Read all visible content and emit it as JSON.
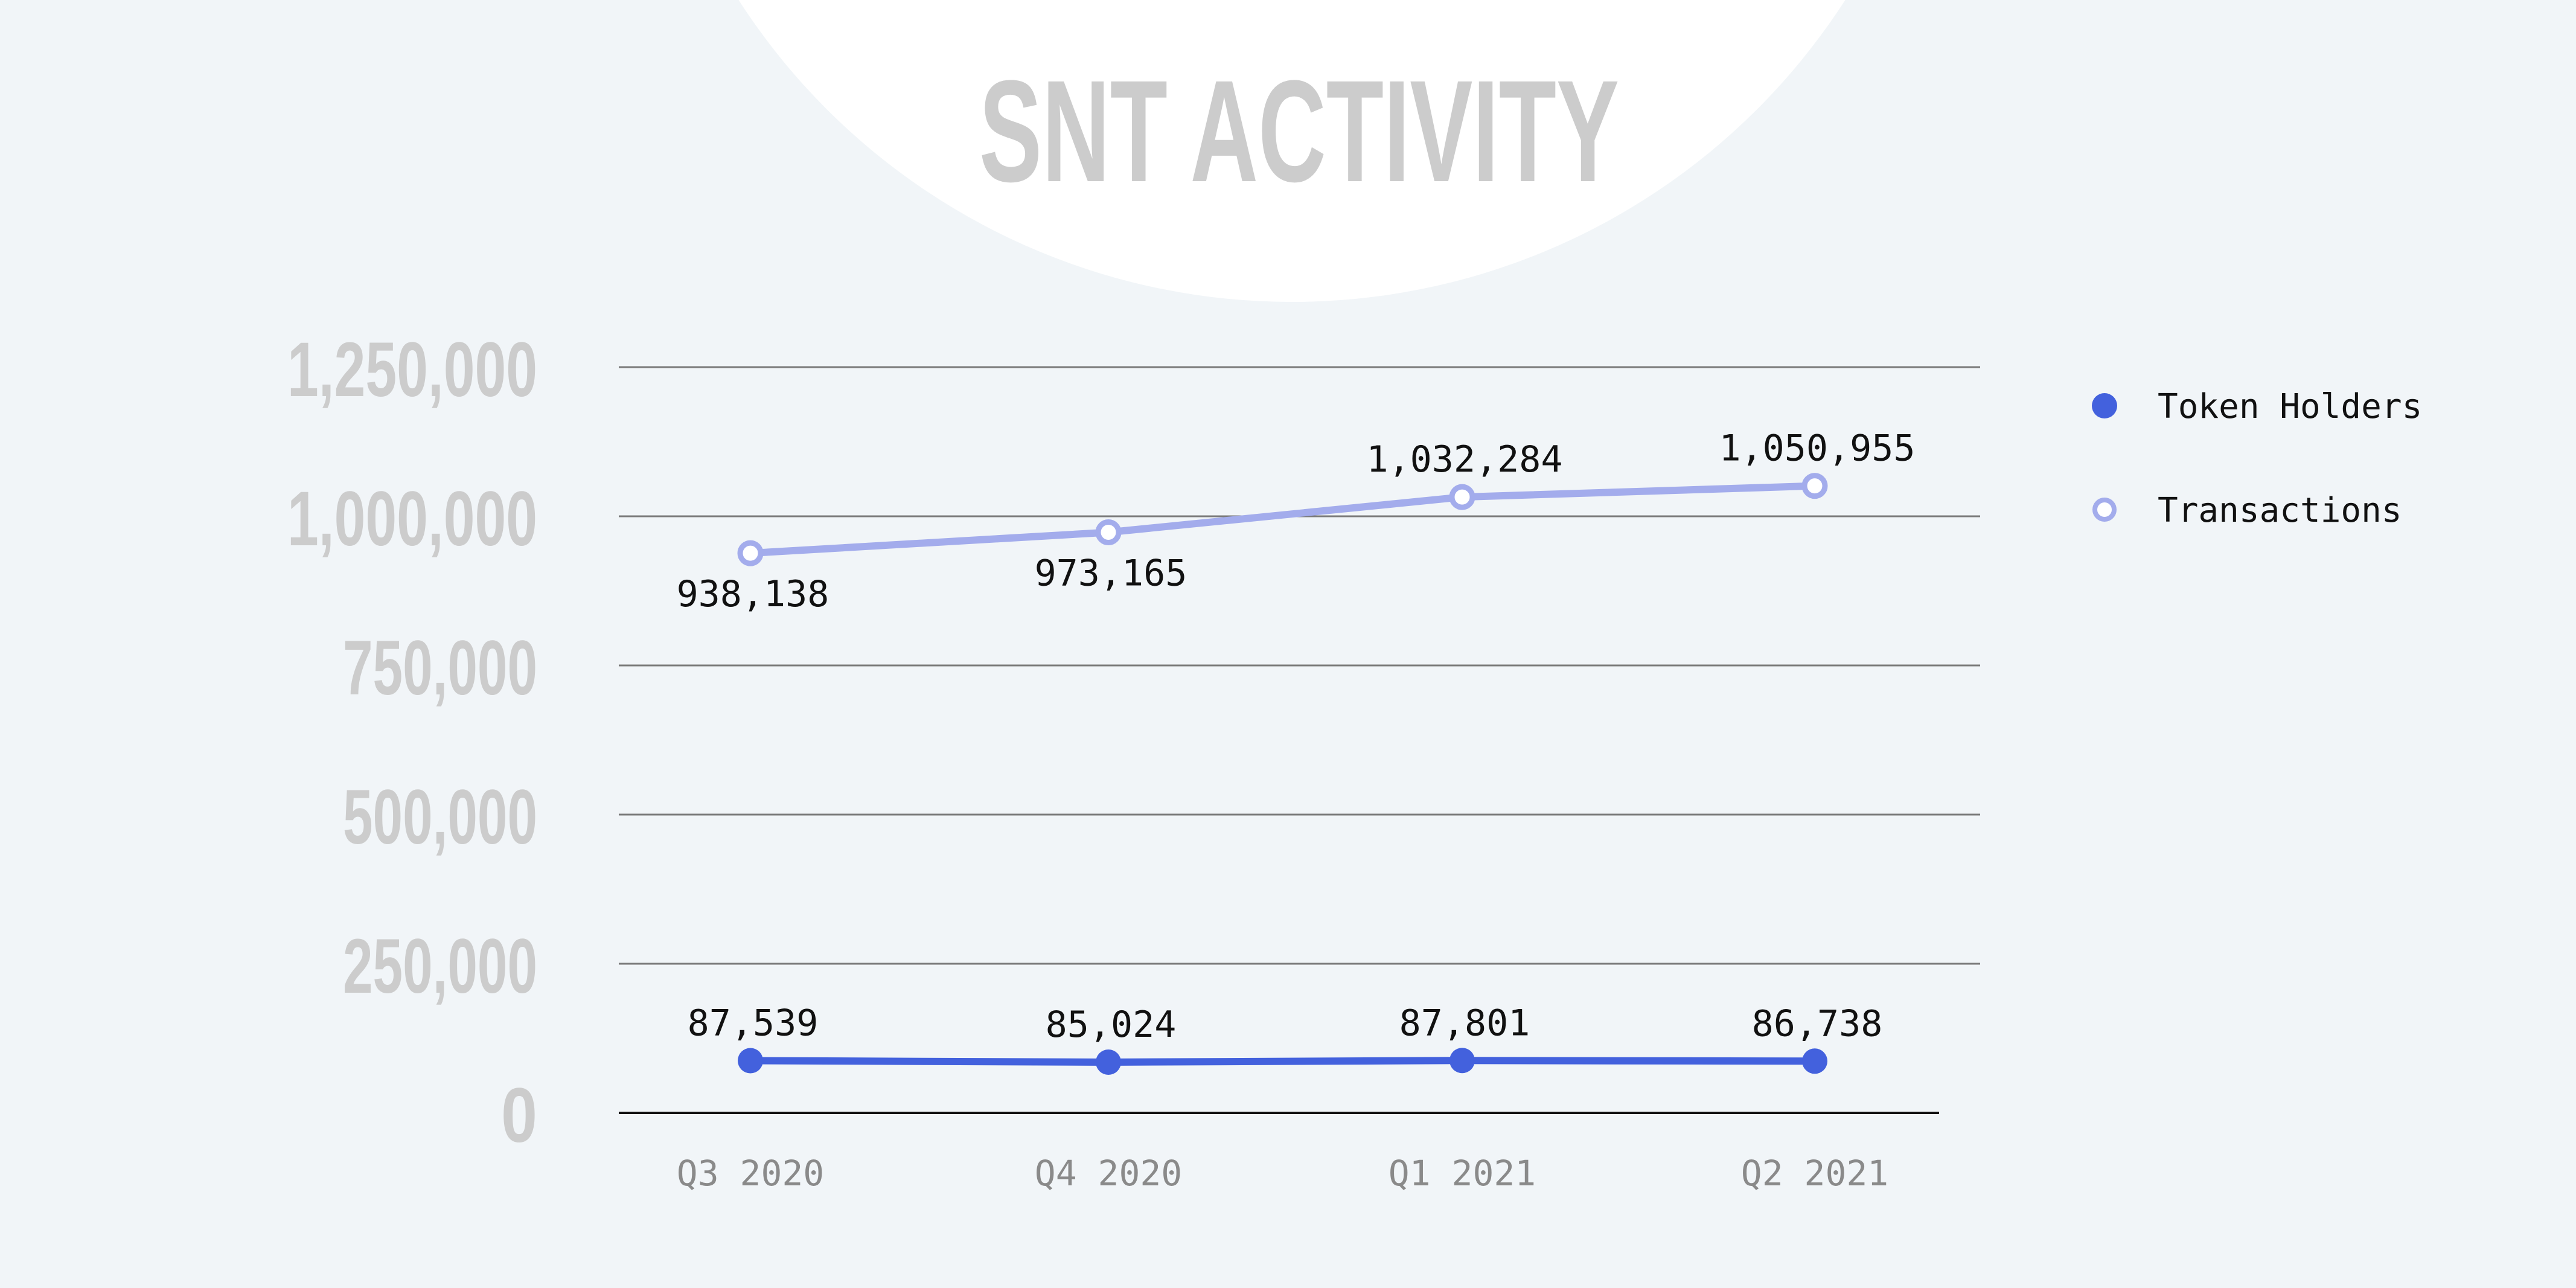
{
  "chart_data": {
    "type": "line",
    "title": "SNT ACTIVITY",
    "categories": [
      "Q3 2020",
      "Q4 2020",
      "Q1 2021",
      "Q2 2021"
    ],
    "ylim": [
      0,
      1250000
    ],
    "y_ticks": [
      0,
      250000,
      500000,
      750000,
      1000000,
      1250000
    ],
    "y_tick_labels": [
      "0",
      "250,000",
      "500,000",
      "750,000",
      "1,000,000",
      "1,250,000"
    ],
    "grid": true,
    "legend_position": "top-right",
    "series": [
      {
        "name": "Token Holders",
        "values": [
          87539,
          85024,
          87801,
          86738
        ],
        "labels": [
          "87,539",
          "85,024",
          "87,801",
          "86,738"
        ],
        "color": "#4361dd",
        "marker": "filled-circle"
      },
      {
        "name": "Transactions",
        "values": [
          938138,
          973165,
          1032284,
          1050955
        ],
        "labels": [
          "938,138",
          "973,165",
          "1,032,284",
          "1,050,955"
        ],
        "color": "#a3acec",
        "marker": "hollow-circle"
      }
    ]
  },
  "colors": {
    "background": "#f1f5f8",
    "title_circle": "#ffffff",
    "title_text": "#cccccc",
    "ytick_text": "#cccccc",
    "xtick_text": "#8a8a8a",
    "gridline": "#7a7a7a",
    "axis_line": "#111111",
    "data_label": "#111111"
  }
}
